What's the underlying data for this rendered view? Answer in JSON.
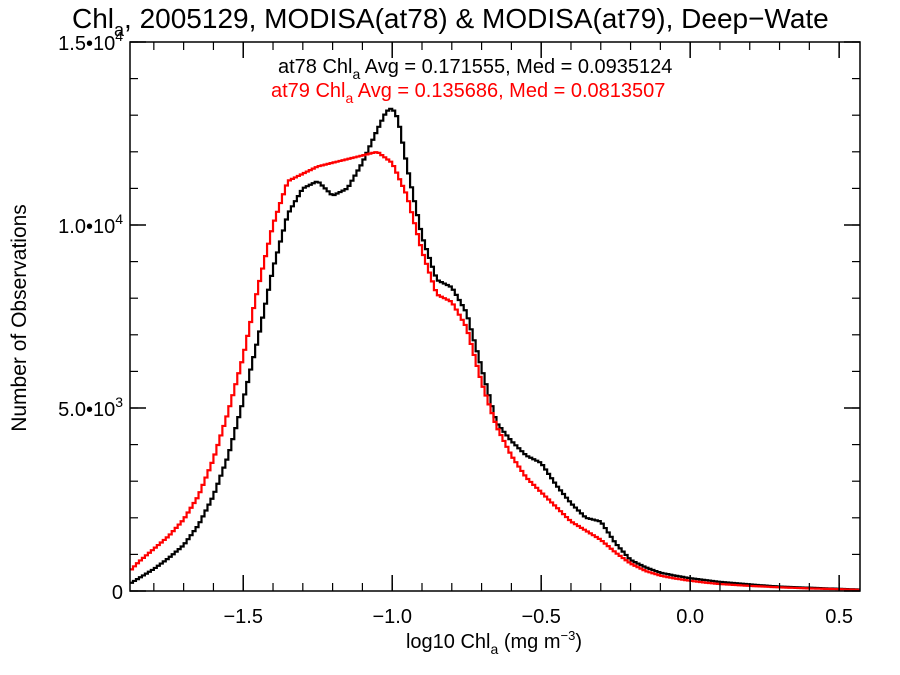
{
  "chart_data": {
    "type": "histogram",
    "title_parts": {
      "pre": "Chl",
      "sub": "a",
      "post": ", 2005129, MODISA(at78) & MODISA(at79), Deep−Wate"
    },
    "xlabel": {
      "pre": "log10 Chl",
      "sub": "a",
      "mid": " (mg m",
      "sup": "−3",
      "post": ")"
    },
    "ylabel": "Number of Observations",
    "xlim": [
      -1.88,
      0.57
    ],
    "ylim": [
      0,
      15000
    ],
    "x_major_ticks": [
      -1.5,
      -1.0,
      -0.5,
      0.0,
      0.5
    ],
    "x_tick_labels": [
      "−1.5",
      "−1.0",
      "−0.5",
      "0.0",
      "0.5"
    ],
    "x_minor_step": 0.1,
    "y_major_ticks": [
      0,
      5000,
      10000,
      15000
    ],
    "y_tick_labels": [
      {
        "base": "0",
        "exp": ""
      },
      {
        "base": "5.0•10",
        "exp": "3"
      },
      {
        "base": "1.0•10",
        "exp": "4"
      },
      {
        "base": "1.5•10",
        "exp": "4"
      }
    ],
    "y_minor_step": 1000,
    "grid": false,
    "annotations": [
      {
        "pre": "at78 Chl",
        "sub": "a",
        "post": " Avg = 0.171555, Med = 0.0935124",
        "color": "#000000"
      },
      {
        "pre": "at79 Chl",
        "sub": "a",
        "post": " Avg = 0.135686, Med = 0.0813507",
        "color": "#ff0000"
      }
    ],
    "series": [
      {
        "color": "#000000",
        "x": [
          -1.88,
          -1.85,
          -1.8,
          -1.75,
          -1.7,
          -1.65,
          -1.6,
          -1.55,
          -1.5,
          -1.45,
          -1.4,
          -1.35,
          -1.3,
          -1.25,
          -1.2,
          -1.15,
          -1.1,
          -1.05,
          -1.02,
          -1.0,
          -0.98,
          -0.95,
          -0.9,
          -0.85,
          -0.8,
          -0.75,
          -0.7,
          -0.65,
          -0.6,
          -0.55,
          -0.5,
          -0.45,
          -0.4,
          -0.35,
          -0.3,
          -0.25,
          -0.2,
          -0.15,
          -0.1,
          -0.05,
          0.0,
          0.05,
          0.1,
          0.2,
          0.3,
          0.4,
          0.5,
          0.57
        ],
        "y": [
          200,
          350,
          600,
          900,
          1250,
          1800,
          2600,
          3700,
          5200,
          6900,
          8800,
          10300,
          11000,
          11200,
          10800,
          11000,
          11700,
          12600,
          13100,
          13200,
          12900,
          11600,
          9700,
          8500,
          8300,
          7600,
          6100,
          4600,
          4100,
          3700,
          3500,
          2900,
          2400,
          2000,
          1900,
          1300,
          850,
          650,
          500,
          420,
          350,
          300,
          250,
          180,
          120,
          90,
          60,
          40
        ]
      },
      {
        "color": "#ff0000",
        "x": [
          -1.88,
          -1.85,
          -1.8,
          -1.75,
          -1.7,
          -1.65,
          -1.6,
          -1.55,
          -1.5,
          -1.45,
          -1.4,
          -1.35,
          -1.3,
          -1.25,
          -1.2,
          -1.15,
          -1.1,
          -1.05,
          -1.0,
          -0.95,
          -0.9,
          -0.85,
          -0.8,
          -0.75,
          -0.7,
          -0.65,
          -0.6,
          -0.55,
          -0.5,
          -0.45,
          -0.4,
          -0.35,
          -0.3,
          -0.25,
          -0.2,
          -0.15,
          -0.1,
          -0.05,
          0.0,
          0.05,
          0.1,
          0.2,
          0.3,
          0.4,
          0.5,
          0.57
        ],
        "y": [
          550,
          800,
          1150,
          1500,
          1950,
          2600,
          3600,
          4900,
          6400,
          8300,
          10000,
          11200,
          11400,
          11600,
          11700,
          11800,
          11900,
          12000,
          11700,
          10800,
          9300,
          8100,
          7900,
          7200,
          5700,
          4500,
          3700,
          3100,
          2700,
          2300,
          1900,
          1650,
          1400,
          1050,
          750,
          550,
          420,
          340,
          280,
          230,
          190,
          140,
          100,
          70,
          50,
          30
        ]
      }
    ]
  }
}
